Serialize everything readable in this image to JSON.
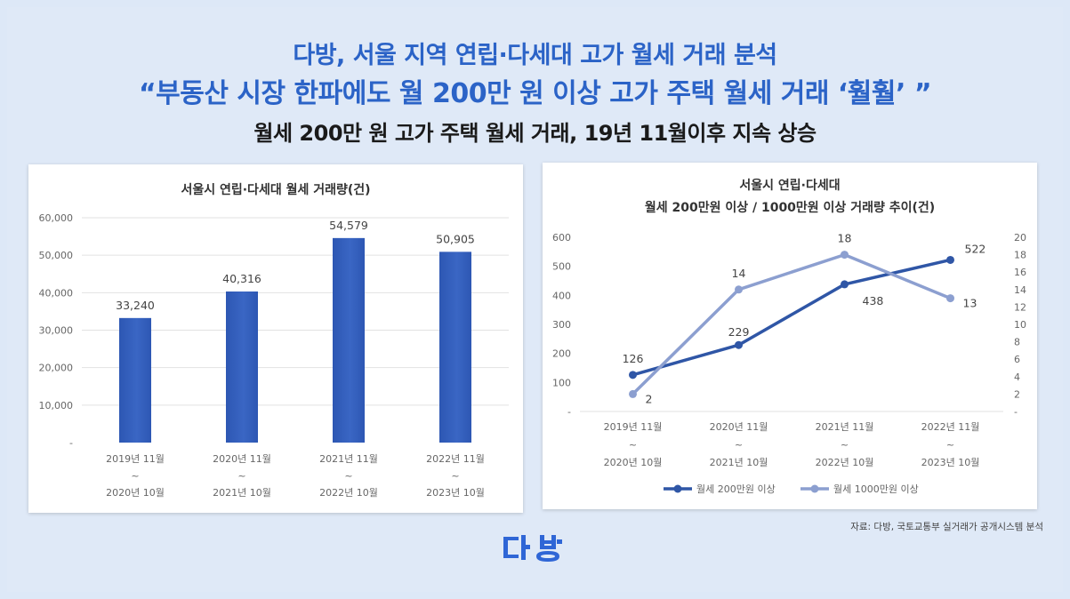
{
  "header": {
    "title_line1": "다방, 서울 지역 연립·다세대 고가 월세 거래 분석",
    "title_line2": "“부동산 시장 한파에도 월 200만 원 이상 고가 주택 월세 거래 ‘훨훨’ ”",
    "subtitle": "월세 200만 원 고가 주택 월세 거래, 19년 11월이후 지속 상승"
  },
  "chart_data": [
    {
      "type": "bar",
      "title": "서울시 연립·다세대 월세 거래량(건)",
      "categories": [
        [
          "2019년 11월",
          "~",
          "2020년 10월"
        ],
        [
          "2020년 11월",
          "~",
          "2021년 10월"
        ],
        [
          "2021년 11월",
          "~",
          "2022년 10월"
        ],
        [
          "2022년 11월",
          "~",
          "2023년 10월"
        ]
      ],
      "values": [
        33240,
        40316,
        54579,
        50905
      ],
      "value_labels": [
        "33,240",
        "40,316",
        "54,579",
        "50,905"
      ],
      "yticks": [
        "-",
        "10,000",
        "20,000",
        "30,000",
        "40,000",
        "50,000",
        "60,000"
      ],
      "ylim": [
        0,
        60000
      ],
      "grid": true,
      "color": "#3a66c4"
    },
    {
      "type": "line",
      "title_line1": "서울시 연립·다세대",
      "title_line2": "월세 200만원 이상 / 1000만원 이상 거래량 추이(건)",
      "categories": [
        [
          "2019년 11월",
          "~",
          "2020년 10월"
        ],
        [
          "2020년 11월",
          "~",
          "2021년 10월"
        ],
        [
          "2021년 11월",
          "~",
          "2022년 10월"
        ],
        [
          "2022년 11월",
          "~",
          "2023년 10월"
        ]
      ],
      "series": [
        {
          "name": "월세 200만원 이상",
          "axis": "left",
          "values": [
            126,
            229,
            438,
            522
          ],
          "labels": [
            "126",
            "229",
            "438",
            "522"
          ],
          "color": "#2f56a6"
        },
        {
          "name": "월세 1000만원 이상",
          "axis": "right",
          "values": [
            2,
            14,
            18,
            13
          ],
          "labels": [
            "2",
            "14",
            "18",
            "13"
          ],
          "color": "#8c9fd0"
        }
      ],
      "yticks_left": [
        "-",
        "100",
        "200",
        "300",
        "400",
        "500",
        "600"
      ],
      "ylim_left": [
        0,
        600
      ],
      "yticks_right": [
        "-",
        "2",
        "4",
        "6",
        "8",
        "10",
        "12",
        "14",
        "16",
        "18",
        "20"
      ],
      "ylim_right": [
        0,
        20
      ],
      "legend_position": "bottom"
    }
  ],
  "source": "자료: 다방, 국토교통부 실거래가 공개시스템 분석",
  "logo": {
    "text": "다방",
    "color": "#2f66d6"
  }
}
